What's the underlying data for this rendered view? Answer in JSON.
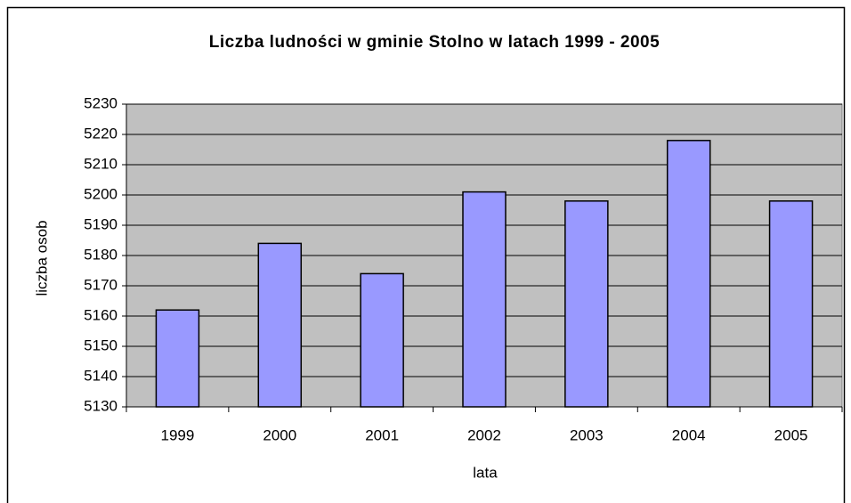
{
  "chart_data": {
    "type": "bar",
    "title": "Liczba ludności w gminie Stolno w latach 1999 - 2005",
    "x_label": "lata",
    "y_label": "liczba osob",
    "categories": [
      "1999",
      "2000",
      "2001",
      "2002",
      "2003",
      "2004",
      "2005"
    ],
    "values": [
      5162,
      5184,
      5174,
      5201,
      5198,
      5218,
      5198
    ],
    "color": "#9999ff",
    "ylim": [
      5130,
      5230
    ],
    "yticks": [
      5130,
      5140,
      5150,
      5160,
      5170,
      5180,
      5190,
      5200,
      5210,
      5220,
      5230
    ],
    "grid": true
  }
}
